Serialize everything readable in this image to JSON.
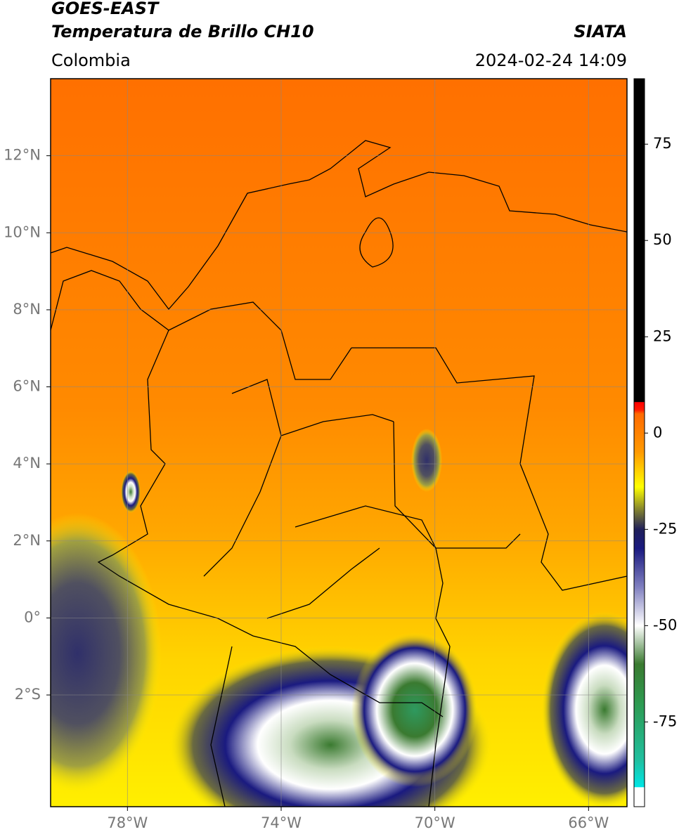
{
  "chart_data": {
    "type": "map",
    "title": "GOES-EAST",
    "subtitle": "Temperatura de Brillo CH10",
    "source": "SIATA",
    "region": "Colombia",
    "datetime": "2024-02-24 14:09",
    "xlim": [
      -80,
      -65
    ],
    "ylim": [
      -4.9,
      14
    ],
    "xticks": [
      {
        "value": -78,
        "label": "78°W"
      },
      {
        "value": -74,
        "label": "74°W"
      },
      {
        "value": -70,
        "label": "70°W"
      },
      {
        "value": -66,
        "label": "66°W"
      }
    ],
    "yticks": [
      {
        "value": 12,
        "label": "12°N"
      },
      {
        "value": 10,
        "label": "10°N"
      },
      {
        "value": 8,
        "label": "8°N"
      },
      {
        "value": 6,
        "label": "6°N"
      },
      {
        "value": 4,
        "label": "4°N"
      },
      {
        "value": 2,
        "label": "2°N"
      },
      {
        "value": 0,
        "label": "0°"
      },
      {
        "value": -2,
        "label": "2°S"
      }
    ],
    "grid": true,
    "colorbar": {
      "lim": [
        -97,
        92
      ],
      "ticks": [
        75,
        50,
        25,
        0,
        -25,
        -50,
        -75
      ],
      "stops": [
        {
          "value": -97,
          "color": "#ffffff"
        },
        {
          "value": -92,
          "color": "#ffffff"
        },
        {
          "value": -91.9,
          "color": "#00e5e5"
        },
        {
          "value": -85,
          "color": "#20c0a0"
        },
        {
          "value": -70,
          "color": "#2e9a50"
        },
        {
          "value": -60,
          "color": "#3a7a30"
        },
        {
          "value": -50,
          "color": "#ffffff"
        },
        {
          "value": -40,
          "color": "#8080c0"
        },
        {
          "value": -30,
          "color": "#1a1a80"
        },
        {
          "value": -25,
          "color": "#20205a"
        },
        {
          "value": -20,
          "color": "#808030"
        },
        {
          "value": -14,
          "color": "#ffff00"
        },
        {
          "value": -5,
          "color": "#ff9a00"
        },
        {
          "value": 5,
          "color": "#ff6a00"
        },
        {
          "value": 6,
          "color": "#ff1a00"
        },
        {
          "value": 8,
          "color": "#ff0000"
        },
        {
          "value": 8.1,
          "color": "#000000"
        },
        {
          "value": 92,
          "color": "#000000"
        }
      ]
    }
  }
}
